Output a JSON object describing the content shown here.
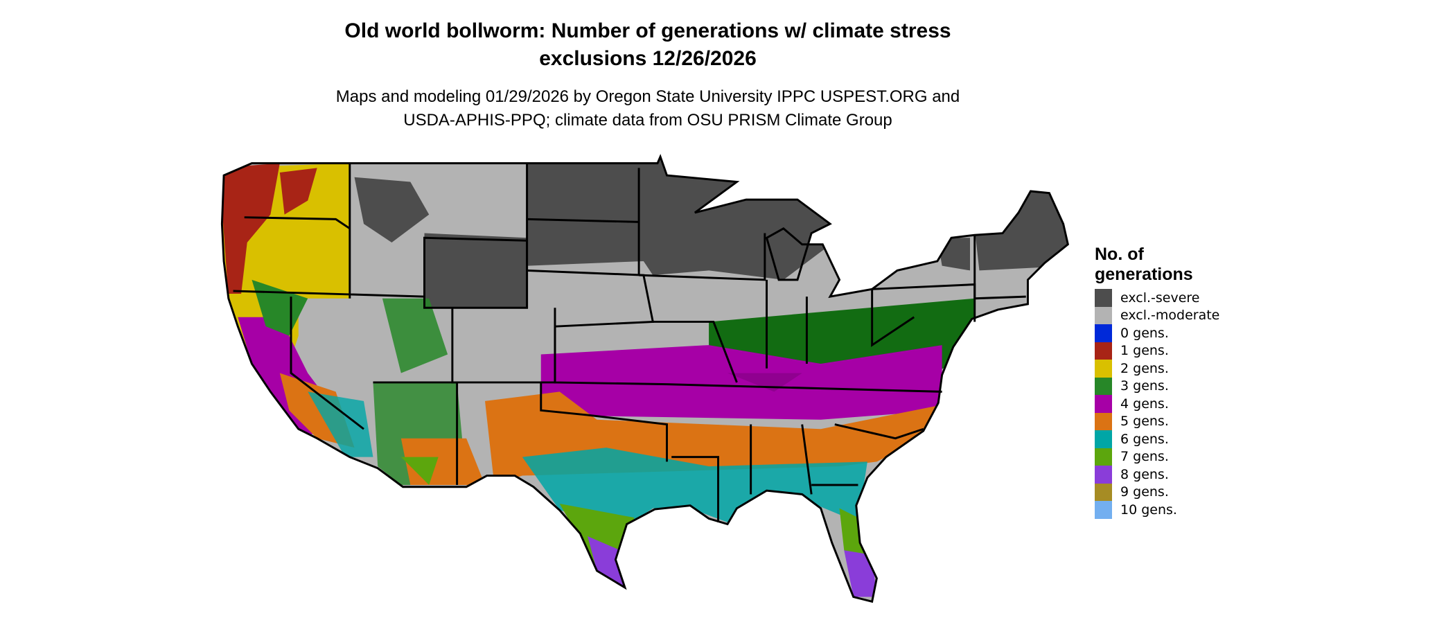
{
  "title": {
    "line1": "Old world bollworm: Number of generations w/ climate stress",
    "line2": "exclusions 12/26/2026"
  },
  "subtitle": {
    "line1": "Maps and modeling 01/29/2026 by Oregon State University IPPC USPEST.ORG and",
    "line2": "USDA-APHIS-PPQ; climate data from OSU PRISM Climate Group"
  },
  "legend": {
    "title_line1": "No. of",
    "title_line2": "generations",
    "items": [
      {
        "label": "excl.-severe",
        "color": "#4d4d4d"
      },
      {
        "label": "excl.-moderate",
        "color": "#b3b3b3"
      },
      {
        "label": "0 gens.",
        "color": "#0029d9"
      },
      {
        "label": "1 gens.",
        "color": "#a82416"
      },
      {
        "label": "2 gens.",
        "color": "#d9c000"
      },
      {
        "label": "3 gens.",
        "color": "#278728"
      },
      {
        "label": "4 gens.",
        "color": "#a600a6"
      },
      {
        "label": "5 gens.",
        "color": "#db7314"
      },
      {
        "label": "6 gens.",
        "color": "#00a6a6"
      },
      {
        "label": "7 gens.",
        "color": "#5ca60d"
      },
      {
        "label": "8 gens.",
        "color": "#8a3dd9"
      },
      {
        "label": "9 gens.",
        "color": "#a68c24"
      },
      {
        "label": "10 gens.",
        "color": "#73aff0"
      }
    ]
  }
}
